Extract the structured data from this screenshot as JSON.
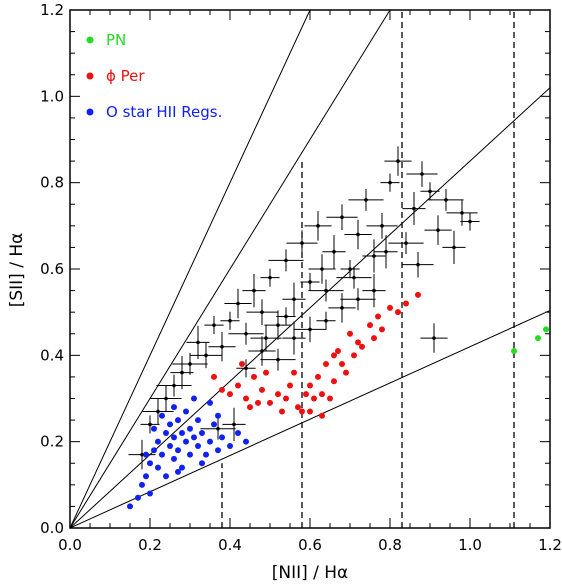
{
  "chart_data": {
    "type": "scatter",
    "xlabel": "[NII] / Hα",
    "ylabel": "[SII] / Hα",
    "xlim": [
      0.0,
      1.2
    ],
    "ylim": [
      0.0,
      1.2
    ],
    "x_ticks": [
      "0.0",
      "0.2",
      "0.4",
      "0.6",
      "0.8",
      "1.0",
      "1.2"
    ],
    "y_ticks": [
      "0.0",
      "0.2",
      "0.4",
      "0.6",
      "0.8",
      "1.0",
      "1.2"
    ],
    "grid": false,
    "legend_placement": "top-left",
    "series": [
      {
        "name": "PN",
        "color": "#22dd22",
        "points": [
          [
            1.11,
            0.41
          ],
          [
            1.17,
            0.44
          ],
          [
            1.19,
            0.46
          ]
        ]
      },
      {
        "name": "ϕ Per",
        "color": "#ee1111",
        "points": [
          [
            0.36,
            0.35
          ],
          [
            0.38,
            0.32
          ],
          [
            0.4,
            0.31
          ],
          [
            0.42,
            0.33
          ],
          [
            0.44,
            0.3
          ],
          [
            0.46,
            0.35
          ],
          [
            0.48,
            0.32
          ],
          [
            0.5,
            0.29
          ],
          [
            0.52,
            0.31
          ],
          [
            0.54,
            0.3
          ],
          [
            0.56,
            0.36
          ],
          [
            0.57,
            0.28
          ],
          [
            0.58,
            0.27
          ],
          [
            0.6,
            0.33
          ],
          [
            0.61,
            0.3
          ],
          [
            0.62,
            0.35
          ],
          [
            0.63,
            0.31
          ],
          [
            0.64,
            0.38
          ],
          [
            0.65,
            0.3
          ],
          [
            0.66,
            0.34
          ],
          [
            0.67,
            0.41
          ],
          [
            0.68,
            0.38
          ],
          [
            0.69,
            0.36
          ],
          [
            0.7,
            0.45
          ],
          [
            0.71,
            0.4
          ],
          [
            0.72,
            0.43
          ],
          [
            0.73,
            0.42
          ],
          [
            0.75,
            0.47
          ],
          [
            0.76,
            0.44
          ],
          [
            0.77,
            0.49
          ],
          [
            0.78,
            0.46
          ],
          [
            0.8,
            0.51
          ],
          [
            0.82,
            0.5
          ],
          [
            0.84,
            0.52
          ],
          [
            0.87,
            0.54
          ],
          [
            0.45,
            0.28
          ],
          [
            0.49,
            0.36
          ],
          [
            0.53,
            0.27
          ],
          [
            0.59,
            0.31
          ],
          [
            0.63,
            0.26
          ],
          [
            0.43,
            0.38
          ],
          [
            0.47,
            0.29
          ],
          [
            0.55,
            0.33
          ],
          [
            0.6,
            0.27
          ],
          [
            0.66,
            0.4
          ]
        ]
      },
      {
        "name": "O star HII Regs.",
        "color": "#1122ee",
        "points": [
          [
            0.15,
            0.05
          ],
          [
            0.17,
            0.07
          ],
          [
            0.18,
            0.1
          ],
          [
            0.19,
            0.12
          ],
          [
            0.2,
            0.08
          ],
          [
            0.2,
            0.15
          ],
          [
            0.21,
            0.18
          ],
          [
            0.22,
            0.14
          ],
          [
            0.22,
            0.2
          ],
          [
            0.23,
            0.17
          ],
          [
            0.24,
            0.12
          ],
          [
            0.24,
            0.22
          ],
          [
            0.25,
            0.19
          ],
          [
            0.25,
            0.24
          ],
          [
            0.26,
            0.16
          ],
          [
            0.26,
            0.21
          ],
          [
            0.27,
            0.25
          ],
          [
            0.27,
            0.18
          ],
          [
            0.28,
            0.22
          ],
          [
            0.28,
            0.14
          ],
          [
            0.29,
            0.2
          ],
          [
            0.29,
            0.27
          ],
          [
            0.3,
            0.23
          ],
          [
            0.3,
            0.17
          ],
          [
            0.31,
            0.21
          ],
          [
            0.32,
            0.25
          ],
          [
            0.32,
            0.19
          ],
          [
            0.33,
            0.22
          ],
          [
            0.34,
            0.17
          ],
          [
            0.35,
            0.2
          ],
          [
            0.36,
            0.24
          ],
          [
            0.37,
            0.18
          ],
          [
            0.38,
            0.21
          ],
          [
            0.4,
            0.19
          ],
          [
            0.42,
            0.22
          ],
          [
            0.44,
            0.2
          ],
          [
            0.21,
            0.23
          ],
          [
            0.23,
            0.26
          ],
          [
            0.26,
            0.28
          ],
          [
            0.31,
            0.3
          ],
          [
            0.35,
            0.29
          ],
          [
            0.37,
            0.26
          ],
          [
            0.19,
            0.17
          ],
          [
            0.27,
            0.13
          ],
          [
            0.33,
            0.15
          ]
        ]
      },
      {
        "name": "",
        "color": "#000000",
        "points": [
          [
            0.4,
            0.48
          ],
          [
            0.42,
            0.52
          ],
          [
            0.44,
            0.45
          ],
          [
            0.46,
            0.55
          ],
          [
            0.48,
            0.5
          ],
          [
            0.5,
            0.58
          ],
          [
            0.52,
            0.47
          ],
          [
            0.54,
            0.62
          ],
          [
            0.56,
            0.53
          ],
          [
            0.58,
            0.66
          ],
          [
            0.6,
            0.57
          ],
          [
            0.62,
            0.7
          ],
          [
            0.64,
            0.55
          ],
          [
            0.66,
            0.64
          ],
          [
            0.68,
            0.72
          ],
          [
            0.7,
            0.6
          ],
          [
            0.72,
            0.68
          ],
          [
            0.74,
            0.76
          ],
          [
            0.76,
            0.63
          ],
          [
            0.78,
            0.7
          ],
          [
            0.8,
            0.8
          ],
          [
            0.82,
            0.85
          ],
          [
            0.84,
            0.66
          ],
          [
            0.86,
            0.74
          ],
          [
            0.88,
            0.82
          ],
          [
            0.9,
            0.78
          ],
          [
            0.92,
            0.69
          ],
          [
            0.94,
            0.76
          ],
          [
            0.96,
            0.65
          ],
          [
            0.98,
            0.73
          ],
          [
            1.0,
            0.71
          ],
          [
            0.91,
            0.44
          ],
          [
            0.3,
            0.38
          ],
          [
            0.32,
            0.43
          ],
          [
            0.34,
            0.4
          ],
          [
            0.36,
            0.47
          ],
          [
            0.38,
            0.42
          ],
          [
            0.26,
            0.33
          ],
          [
            0.28,
            0.36
          ],
          [
            0.24,
            0.3
          ],
          [
            0.44,
            0.37
          ],
          [
            0.48,
            0.41
          ],
          [
            0.52,
            0.39
          ],
          [
            0.56,
            0.44
          ],
          [
            0.6,
            0.46
          ],
          [
            0.64,
            0.48
          ],
          [
            0.68,
            0.51
          ],
          [
            0.72,
            0.53
          ],
          [
            0.76,
            0.55
          ],
          [
            0.22,
            0.27
          ],
          [
            0.2,
            0.24
          ],
          [
            0.18,
            0.17
          ],
          [
            0.37,
            0.23
          ],
          [
            0.41,
            0.24
          ],
          [
            0.49,
            0.44
          ],
          [
            0.54,
            0.49
          ],
          [
            0.63,
            0.6
          ],
          [
            0.71,
            0.58
          ],
          [
            0.79,
            0.64
          ],
          [
            0.87,
            0.61
          ]
        ]
      }
    ],
    "ref_lines": [
      {
        "slope": 2.0
      },
      {
        "slope": 1.5
      },
      {
        "slope": 0.85
      },
      {
        "slope": 0.42
      }
    ],
    "vlines": [
      {
        "x": 0.38,
        "y_max": 0.15
      },
      {
        "x": 0.58,
        "y_max": 0.85
      },
      {
        "x": 0.83,
        "y_max": 1.2
      },
      {
        "x": 1.11,
        "y_max": 1.2
      }
    ]
  }
}
